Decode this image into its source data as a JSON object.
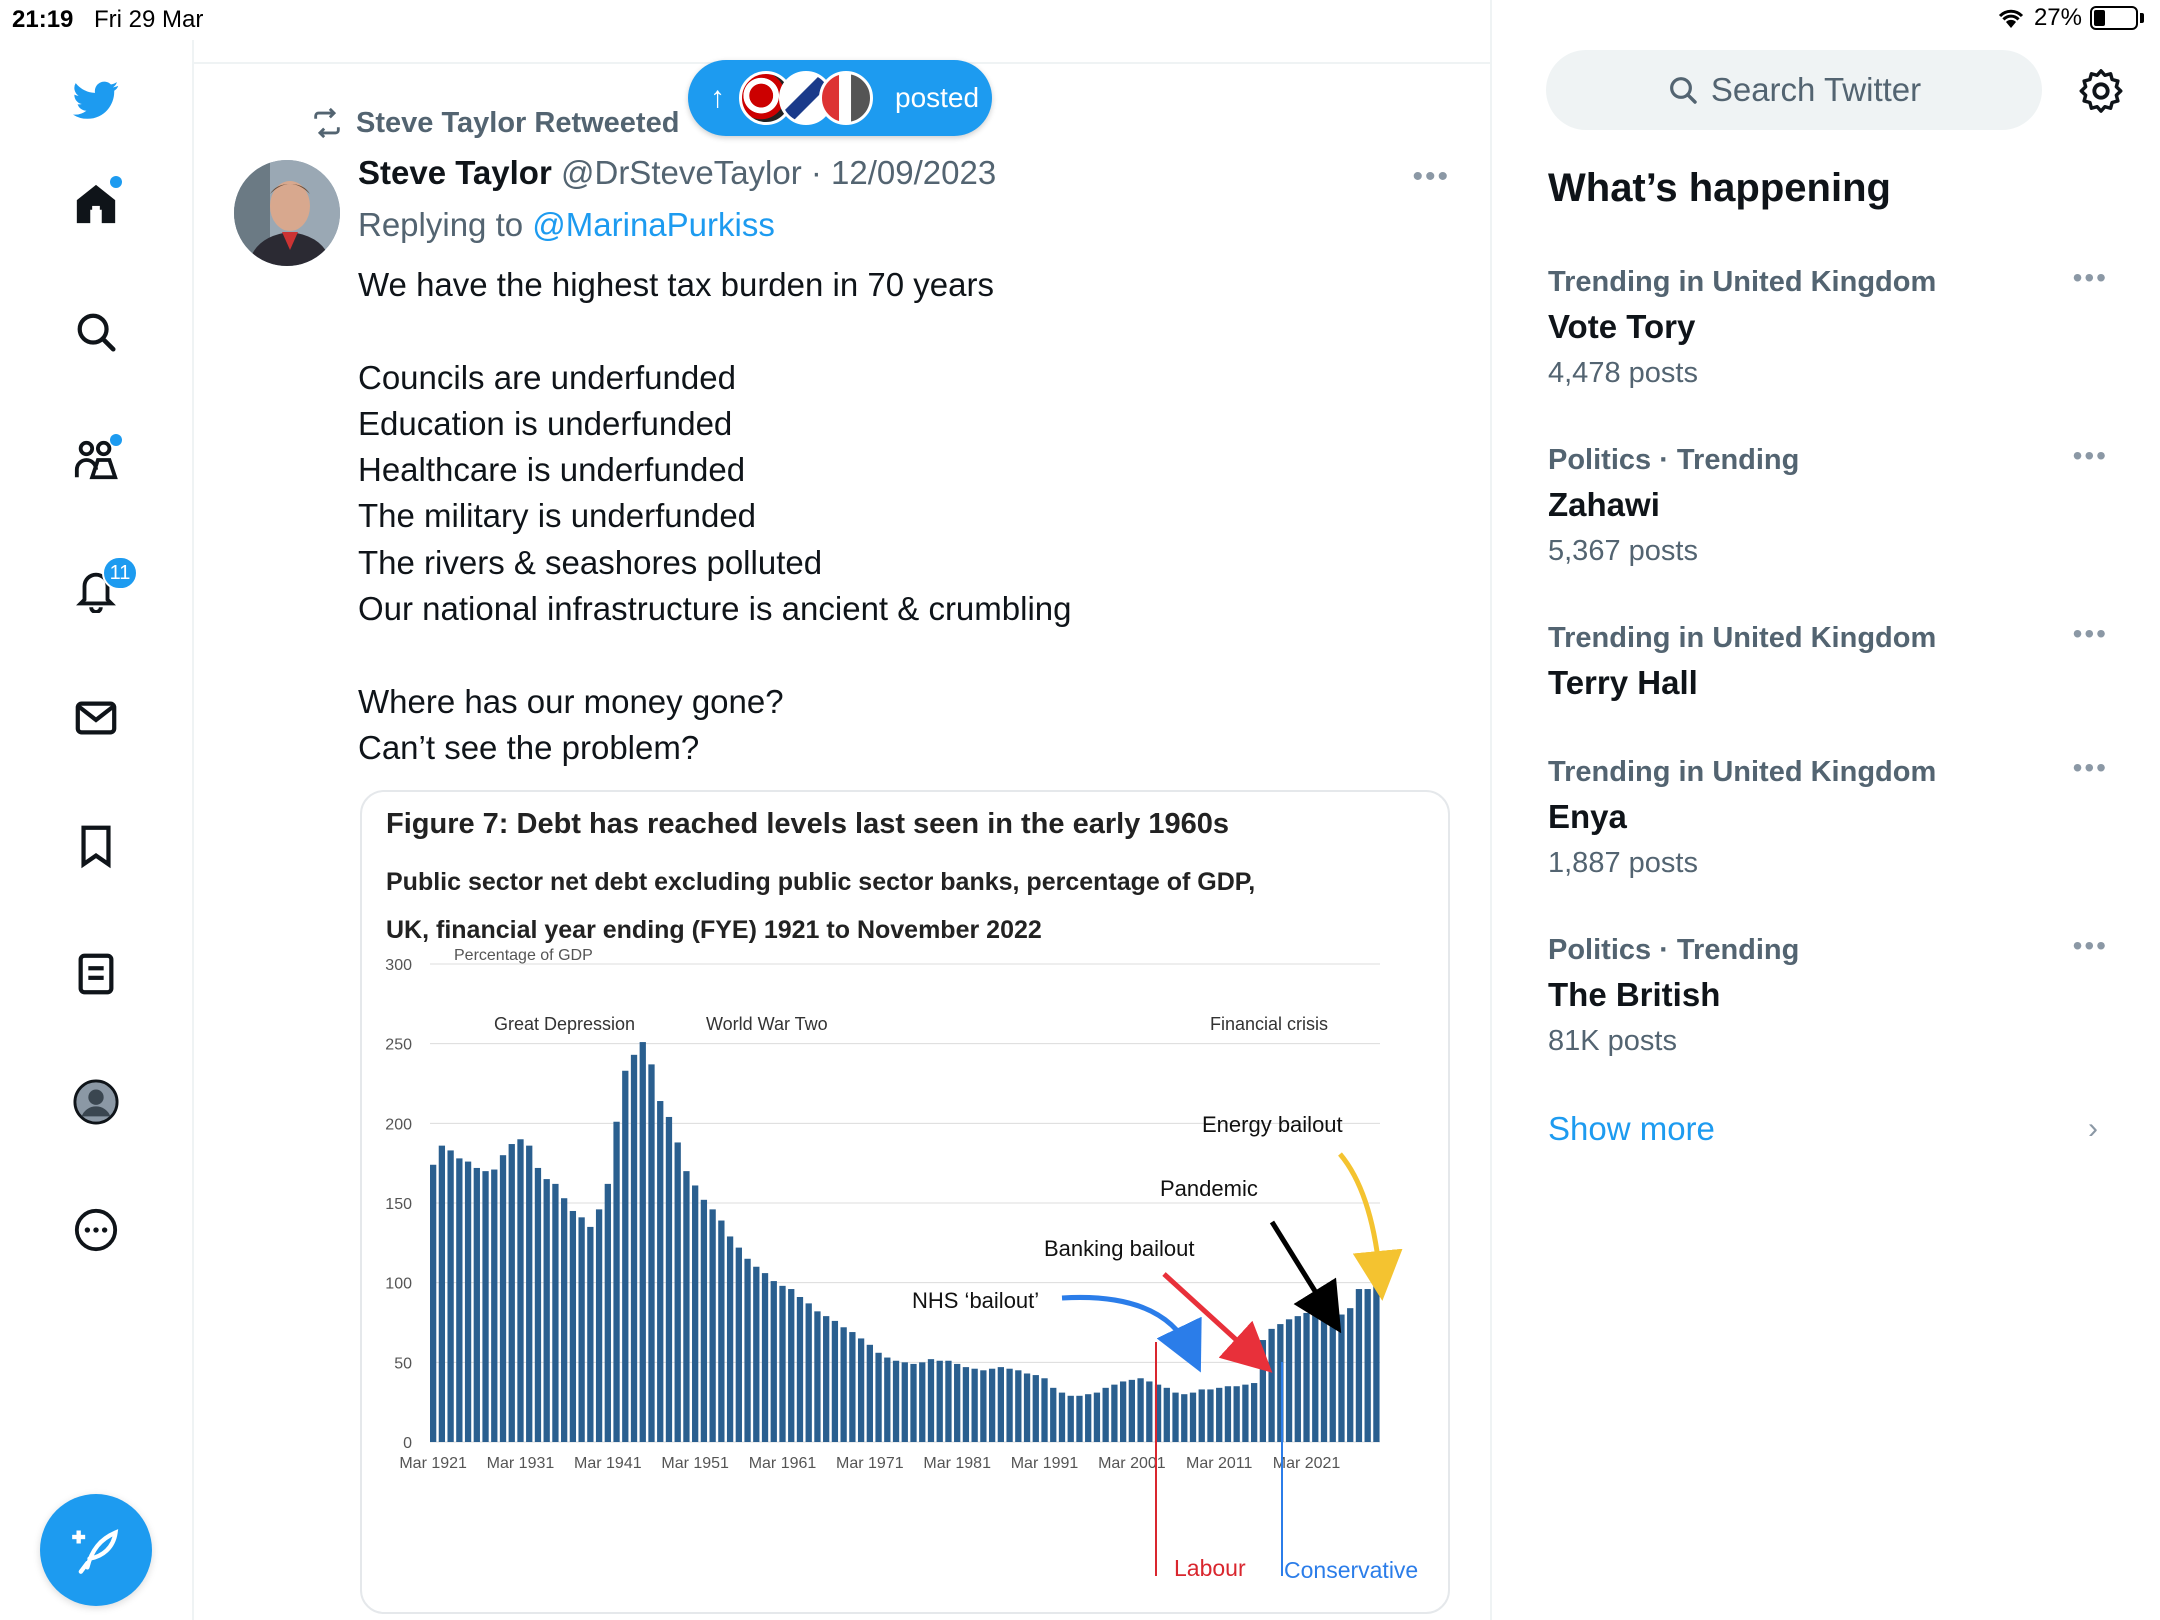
{
  "status_bar": {
    "time": "21:19",
    "date": "Fri 29 Mar",
    "battery": "27%",
    "battery_level": 0.27
  },
  "nav": {
    "notifications_badge": "11",
    "icons": [
      "twitter-logo",
      "home-icon",
      "search-icon",
      "communities-icon",
      "notifications-icon",
      "messages-icon",
      "bookmarks-icon",
      "lists-icon",
      "profile-icon",
      "more-icon",
      "compose-icon"
    ]
  },
  "posted_pill": {
    "label": "posted"
  },
  "tweet": {
    "retweeted_by": "Steve Taylor Retweeted",
    "author_name": "Steve Taylor",
    "author_handle": "@DrSteveTaylor",
    "date": "12/09/2023",
    "replying_prefix": "Replying to",
    "replying_to": "@MarinaPurkiss",
    "lines": [
      "We have the highest tax burden in 70 years",
      "",
      "Councils are underfunded",
      "Education is underfunded",
      "Healthcare is underfunded",
      "The military is underfunded",
      "The rivers & seashores polluted",
      "Our national infrastructure is ancient & crumbling",
      "",
      "Where has our money gone?",
      "Can’t see the problem?"
    ]
  },
  "figure": {
    "title": "Figure 7: Debt has reached levels last seen in the early 1960s",
    "subtitle1": "Public sector net debt excluding public sector banks, percentage of GDP,",
    "subtitle2": "UK, financial year ending (FYE) 1921 to November 2022"
  },
  "chart_data": {
    "type": "bar",
    "ylabel": "Percentage of GDP",
    "ylim": [
      0,
      300
    ],
    "yticks": [
      0,
      50,
      100,
      150,
      200,
      250,
      300
    ],
    "xtick_labels": [
      "Mar 1921",
      "Mar 1931",
      "Mar 1941",
      "Mar 1951",
      "Mar 1961",
      "Mar 1971",
      "Mar 1981",
      "Mar 1991",
      "Mar 2001",
      "Mar 2011",
      "Mar 2021"
    ],
    "bar_color": "#2a5f8f",
    "x_start_year": 1921,
    "values": [
      174,
      186,
      183,
      178,
      176,
      172,
      170,
      171,
      180,
      187,
      190,
      186,
      172,
      165,
      162,
      153,
      145,
      141,
      135,
      146,
      162,
      201,
      233,
      243,
      251,
      237,
      214,
      204,
      188,
      170,
      161,
      152,
      146,
      139,
      129,
      122,
      115,
      110,
      106,
      101,
      98,
      96,
      91,
      87,
      82,
      79,
      76,
      72,
      69,
      65,
      61,
      56,
      53,
      51,
      50,
      49,
      50,
      52,
      51,
      51,
      49,
      47,
      46,
      45,
      46,
      47,
      46,
      45,
      43,
      42,
      40,
      34,
      31,
      29,
      29,
      30,
      31,
      34,
      36,
      38,
      39,
      40,
      38,
      36,
      34,
      31,
      30,
      31,
      33,
      33,
      34,
      35,
      35,
      36,
      37,
      64,
      71,
      74,
      77,
      79,
      81,
      81,
      82,
      81,
      80,
      84,
      96,
      96,
      98
    ],
    "event_labels": [
      "Great Depression",
      "World War Two",
      "Financial crisis"
    ],
    "annotations": [
      "NHS ‘bailout’",
      "Banking bailout",
      "Pandemic",
      "Energy bailout"
    ],
    "period_labels": [
      "Labour",
      "Conservative"
    ],
    "annotation_colors": {
      "nhs": "#2b7de9",
      "banking": "#e8303a",
      "pandemic": "#000000",
      "energy": "#f4c330",
      "labour": "#d9262e",
      "conservative": "#2b7de9"
    }
  },
  "sidebar": {
    "search_placeholder": "Search Twitter",
    "happening_title": "What’s happening",
    "trends": [
      {
        "category": "Trending in United Kingdom",
        "name": "Vote Tory",
        "posts": "4,478 posts"
      },
      {
        "category": "Politics · Trending",
        "name": "Zahawi",
        "posts": "5,367 posts"
      },
      {
        "category": "Trending in United Kingdom",
        "name": "Terry Hall",
        "posts": ""
      },
      {
        "category": "Trending in United Kingdom",
        "name": "Enya",
        "posts": "1,887 posts"
      },
      {
        "category": "Politics · Trending",
        "name": "The British",
        "posts": "81K posts"
      }
    ],
    "show_more": "Show more"
  },
  "colors": {
    "accent": "#1d9bf0",
    "text": "#0f1419",
    "secondary": "#536471"
  }
}
